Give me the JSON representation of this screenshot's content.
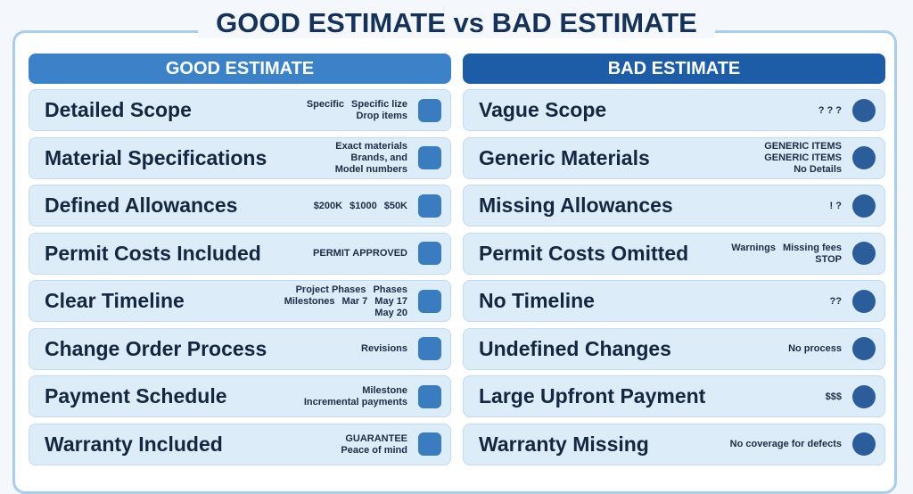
{
  "title": "GOOD ESTIMATE vs BAD ESTIMATE",
  "good": {
    "header": "GOOD ESTIMATE",
    "rows": [
      {
        "label": "Detailed Scope",
        "notes": [
          "Specific",
          "Specific lize",
          "Drop items"
        ]
      },
      {
        "label": "Material Specifications",
        "notes": [
          "Exact materials",
          "Brands, and",
          "Model numbers"
        ]
      },
      {
        "label": "Defined Allowances",
        "notes": [
          "$200K",
          "$1000",
          "$50K"
        ]
      },
      {
        "label": "Permit Costs Included",
        "notes": [
          "PERMIT APPROVED"
        ]
      },
      {
        "label": "Clear Timeline",
        "notes": [
          "Project Phases",
          "Phases",
          "Milestones",
          "Mar 7",
          "May 17",
          "May 20"
        ]
      },
      {
        "label": "Change Order Process",
        "notes": [
          "Revisions"
        ]
      },
      {
        "label": "Payment Schedule",
        "notes": [
          "Milestone",
          "Incremental payments"
        ]
      },
      {
        "label": "Warranty Included",
        "notes": [
          "GUARANTEE",
          "Peace of mind"
        ]
      }
    ]
  },
  "bad": {
    "header": "BAD ESTIMATE",
    "rows": [
      {
        "label": "Vague Scope",
        "notes": [
          "? ? ?"
        ]
      },
      {
        "label": "Generic Materials",
        "notes": [
          "GENERIC ITEMS",
          "GENERIC ITEMS",
          "No Details"
        ]
      },
      {
        "label": "Missing Allowances",
        "notes": [
          "! ?"
        ]
      },
      {
        "label": "Permit Costs Omitted",
        "notes": [
          "Warnings",
          "Missing fees",
          "STOP"
        ]
      },
      {
        "label": "No Timeline",
        "notes": [
          "??"
        ]
      },
      {
        "label": "Undefined Changes",
        "notes": [
          "No process"
        ]
      },
      {
        "label": "Large Upfront Payment",
        "notes": [
          "$$$"
        ]
      },
      {
        "label": "Warranty Missing",
        "notes": [
          "No coverage for defects"
        ]
      }
    ]
  }
}
